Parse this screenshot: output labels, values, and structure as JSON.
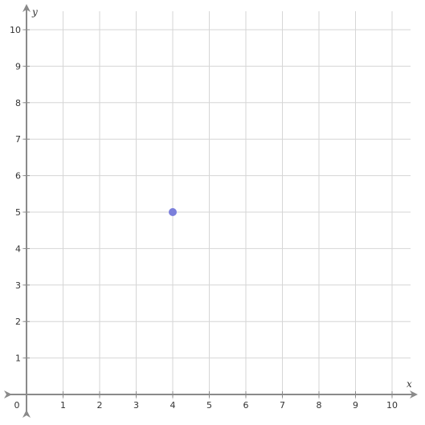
{
  "chart_data": {
    "type": "scatter",
    "xlabel": "x",
    "ylabel": "y",
    "xlim": [
      0,
      10
    ],
    "ylim": [
      0,
      10
    ],
    "x_ticks": [
      "0",
      "1",
      "2",
      "3",
      "4",
      "5",
      "6",
      "7",
      "8",
      "9",
      "10"
    ],
    "y_ticks": [
      "1",
      "2",
      "3",
      "4",
      "5",
      "6",
      "7",
      "8",
      "9",
      "10"
    ],
    "grid": true,
    "points": [
      {
        "x": 4,
        "y": 5
      }
    ],
    "point_color": "#7b7fdb",
    "axis_color": "#8a8a8a",
    "grid_color": "#d6d6d6"
  }
}
